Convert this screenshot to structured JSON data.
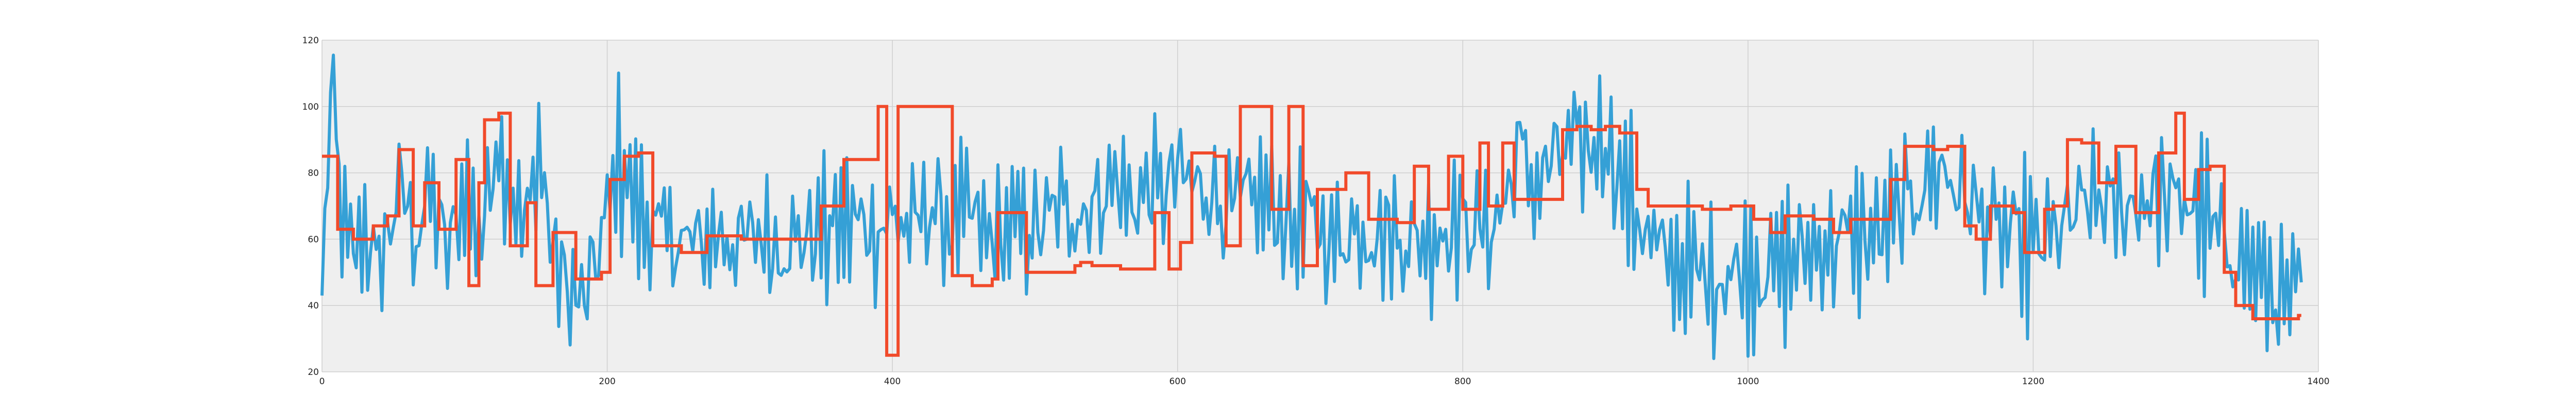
{
  "chart_data": {
    "type": "line",
    "title": "",
    "xlabel": "",
    "ylabel": "",
    "xlim": [
      0,
      1400
    ],
    "ylim": [
      20,
      120
    ],
    "xticks": [
      0,
      200,
      400,
      600,
      800,
      1000,
      1200,
      1400
    ],
    "yticks": [
      20,
      40,
      60,
      80,
      100,
      120
    ],
    "grid": true,
    "legend": "none",
    "colors": {
      "background": "#efefef",
      "grid": "#cfcfcf",
      "signal": "#35a0d6",
      "segments": "#f14a2a"
    },
    "signal_anchors": [
      [
        0,
        43
      ],
      [
        4,
        85
      ],
      [
        8,
        104
      ],
      [
        14,
        63
      ],
      [
        22,
        55
      ],
      [
        30,
        64
      ],
      [
        38,
        50
      ],
      [
        46,
        62
      ],
      [
        56,
        76
      ],
      [
        66,
        60
      ],
      [
        76,
        75
      ],
      [
        88,
        55
      ],
      [
        100,
        75
      ],
      [
        112,
        60
      ],
      [
        122,
        92
      ],
      [
        132,
        75
      ],
      [
        142,
        62
      ],
      [
        152,
        88
      ],
      [
        162,
        55
      ],
      [
        172,
        45
      ],
      [
        184,
        40
      ],
      [
        196,
        60
      ],
      [
        208,
        85
      ],
      [
        222,
        68
      ],
      [
        236,
        62
      ],
      [
        250,
        60
      ],
      [
        264,
        58
      ],
      [
        278,
        62
      ],
      [
        292,
        58
      ],
      [
        306,
        62
      ],
      [
        320,
        58
      ],
      [
        334,
        60
      ],
      [
        348,
        62
      ],
      [
        362,
        64
      ],
      [
        376,
        66
      ],
      [
        390,
        62
      ],
      [
        400,
        68
      ],
      [
        412,
        62
      ],
      [
        426,
        70
      ],
      [
        440,
        64
      ],
      [
        454,
        68
      ],
      [
        466,
        60
      ],
      [
        478,
        62
      ],
      [
        490,
        64
      ],
      [
        502,
        62
      ],
      [
        516,
        70
      ],
      [
        530,
        68
      ],
      [
        544,
        72
      ],
      [
        556,
        78
      ],
      [
        568,
        70
      ],
      [
        580,
        76
      ],
      [
        590,
        74
      ],
      [
        600,
        80
      ],
      [
        612,
        76
      ],
      [
        624,
        75
      ],
      [
        636,
        68
      ],
      [
        648,
        72
      ],
      [
        660,
        72
      ],
      [
        672,
        68
      ],
      [
        684,
        63
      ],
      [
        696,
        66
      ],
      [
        710,
        58
      ],
      [
        722,
        64
      ],
      [
        736,
        62
      ],
      [
        748,
        62
      ],
      [
        760,
        60
      ],
      [
        772,
        60
      ],
      [
        784,
        62
      ],
      [
        794,
        66
      ],
      [
        806,
        64
      ],
      [
        818,
        62
      ],
      [
        830,
        72
      ],
      [
        840,
        88
      ],
      [
        850,
        75
      ],
      [
        860,
        82
      ],
      [
        870,
        86
      ],
      [
        880,
        88
      ],
      [
        890,
        87
      ],
      [
        900,
        92
      ],
      [
        910,
        78
      ],
      [
        920,
        70
      ],
      [
        930,
        60
      ],
      [
        940,
        55
      ],
      [
        952,
        52
      ],
      [
        964,
        50
      ],
      [
        976,
        48
      ],
      [
        988,
        50
      ],
      [
        1000,
        52
      ],
      [
        1012,
        50
      ],
      [
        1024,
        52
      ],
      [
        1036,
        55
      ],
      [
        1048,
        58
      ],
      [
        1060,
        58
      ],
      [
        1072,
        62
      ],
      [
        1084,
        60
      ],
      [
        1096,
        62
      ],
      [
        1106,
        68
      ],
      [
        1116,
        72
      ],
      [
        1126,
        78
      ],
      [
        1136,
        82
      ],
      [
        1146,
        75
      ],
      [
        1156,
        72
      ],
      [
        1166,
        65
      ],
      [
        1176,
        62
      ],
      [
        1186,
        60
      ],
      [
        1196,
        58
      ],
      [
        1206,
        58
      ],
      [
        1216,
        62
      ],
      [
        1226,
        65
      ],
      [
        1236,
        70
      ],
      [
        1246,
        72
      ],
      [
        1256,
        68
      ],
      [
        1266,
        70
      ],
      [
        1276,
        72
      ],
      [
        1286,
        74
      ],
      [
        1296,
        70
      ],
      [
        1306,
        72
      ],
      [
        1316,
        68
      ],
      [
        1326,
        62
      ],
      [
        1336,
        58
      ],
      [
        1346,
        55
      ],
      [
        1356,
        50
      ],
      [
        1366,
        45
      ],
      [
        1376,
        40
      ],
      [
        1382,
        42
      ],
      [
        1388,
        46
      ]
    ],
    "signal_range": [
      0,
      1388
    ],
    "segments": [
      [
        0,
        85
      ],
      [
        11,
        63
      ],
      [
        22,
        60
      ],
      [
        36,
        64
      ],
      [
        46,
        67
      ],
      [
        54,
        87
      ],
      [
        64,
        64
      ],
      [
        72,
        77
      ],
      [
        82,
        63
      ],
      [
        94,
        84
      ],
      [
        103,
        46
      ],
      [
        110,
        77
      ],
      [
        114,
        96
      ],
      [
        124,
        98
      ],
      [
        132,
        58
      ],
      [
        144,
        71
      ],
      [
        150,
        46
      ],
      [
        162,
        62
      ],
      [
        178,
        48
      ],
      [
        196,
        50
      ],
      [
        202,
        78
      ],
      [
        212,
        85
      ],
      [
        222,
        86
      ],
      [
        232,
        58
      ],
      [
        252,
        56
      ],
      [
        270,
        61
      ],
      [
        294,
        60
      ],
      [
        318,
        60
      ],
      [
        344,
        60
      ],
      [
        350,
        70
      ],
      [
        366,
        84
      ],
      [
        390,
        100
      ],
      [
        394,
        100
      ],
      [
        396,
        25
      ],
      [
        404,
        100
      ],
      [
        442,
        49
      ],
      [
        456,
        46
      ],
      [
        470,
        48
      ],
      [
        474,
        68
      ],
      [
        494,
        50
      ],
      [
        528,
        52
      ],
      [
        532,
        53
      ],
      [
        540,
        52
      ],
      [
        560,
        51
      ],
      [
        584,
        68
      ],
      [
        594,
        51
      ],
      [
        602,
        59
      ],
      [
        610,
        86
      ],
      [
        618,
        86
      ],
      [
        626,
        85
      ],
      [
        634,
        58
      ],
      [
        644,
        100
      ],
      [
        666,
        69
      ],
      [
        678,
        100
      ],
      [
        688,
        52
      ],
      [
        698,
        75
      ],
      [
        718,
        80
      ],
      [
        734,
        66
      ],
      [
        754,
        65
      ],
      [
        766,
        82
      ],
      [
        776,
        69
      ],
      [
        790,
        85
      ],
      [
        800,
        69
      ],
      [
        812,
        89
      ],
      [
        818,
        70
      ],
      [
        828,
        89
      ],
      [
        836,
        72
      ],
      [
        862,
        72
      ],
      [
        870,
        93
      ],
      [
        880,
        94
      ],
      [
        890,
        93
      ],
      [
        900,
        94
      ],
      [
        910,
        92
      ],
      [
        922,
        75
      ],
      [
        930,
        70
      ],
      [
        960,
        70
      ],
      [
        968,
        69
      ],
      [
        988,
        70
      ],
      [
        1004,
        66
      ],
      [
        1016,
        62
      ],
      [
        1026,
        67
      ],
      [
        1046,
        66
      ],
      [
        1060,
        62
      ],
      [
        1072,
        66
      ],
      [
        1096,
        66
      ],
      [
        1100,
        78
      ],
      [
        1110,
        88
      ],
      [
        1130,
        87
      ],
      [
        1140,
        88
      ],
      [
        1152,
        64
      ],
      [
        1160,
        60
      ],
      [
        1170,
        70
      ],
      [
        1186,
        68
      ],
      [
        1194,
        56
      ],
      [
        1208,
        69
      ],
      [
        1214,
        70
      ],
      [
        1224,
        90
      ],
      [
        1234,
        89
      ],
      [
        1246,
        77
      ],
      [
        1258,
        88
      ],
      [
        1272,
        68
      ],
      [
        1288,
        86
      ],
      [
        1300,
        98
      ],
      [
        1306,
        72
      ],
      [
        1316,
        81
      ],
      [
        1324,
        82
      ],
      [
        1334,
        50
      ],
      [
        1342,
        40
      ],
      [
        1354,
        36
      ],
      [
        1370,
        36
      ],
      [
        1386,
        37
      ]
    ],
    "segments_end": 1388
  }
}
